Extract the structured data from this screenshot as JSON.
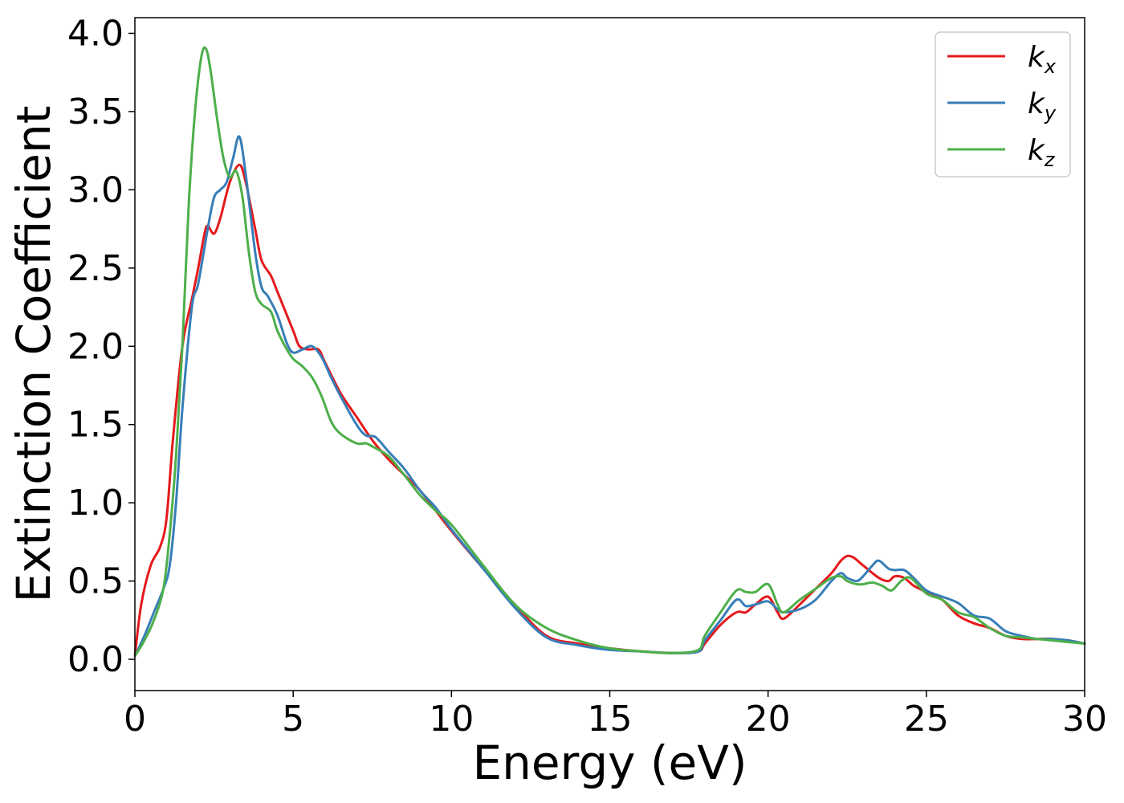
{
  "chart_data": {
    "type": "line",
    "xlabel": "Energy (eV)",
    "ylabel": "Extinction Coefficient",
    "xlim": [
      0,
      30
    ],
    "ylim": [
      -0.2,
      4.1
    ],
    "xticks": [
      0,
      5,
      10,
      15,
      20,
      25,
      30
    ],
    "xtick_labels": [
      "0",
      "5",
      "10",
      "15",
      "20",
      "25",
      "30"
    ],
    "yticks": [
      0.0,
      0.5,
      1.0,
      1.5,
      2.0,
      2.5,
      3.0,
      3.5,
      4.0
    ],
    "ytick_labels": [
      "0.0",
      "0.5",
      "1.0",
      "1.5",
      "2.0",
      "2.5",
      "3.0",
      "3.5",
      "4.0"
    ],
    "grid": false,
    "legend_position": "top-right",
    "series": [
      {
        "name": "k",
        "subscript": "x",
        "color": "#e41a1c",
        "x": [
          0,
          0.2,
          0.5,
          0.8,
          1.0,
          1.2,
          1.5,
          1.8,
          2.0,
          2.2,
          2.3,
          2.5,
          2.7,
          3.0,
          3.3,
          3.5,
          3.8,
          4.0,
          4.3,
          4.5,
          5.0,
          5.2,
          5.5,
          5.8,
          6.0,
          6.5,
          7.0,
          7.5,
          8.0,
          8.5,
          9.0,
          9.5,
          10.0,
          11.0,
          12.0,
          13.0,
          14.0,
          15.0,
          16.0,
          17.0,
          17.8,
          18.0,
          18.5,
          19.0,
          19.3,
          19.6,
          20.0,
          20.3,
          20.5,
          21.0,
          21.5,
          22.0,
          22.3,
          22.5,
          22.7,
          23.0,
          23.5,
          23.8,
          24.0,
          24.3,
          24.6,
          25.0,
          25.5,
          26.0,
          26.5,
          27.0,
          27.5,
          28.0,
          28.5,
          29.0,
          29.5,
          30.0
        ],
        "y": [
          0.02,
          0.35,
          0.6,
          0.72,
          0.9,
          1.4,
          2.0,
          2.3,
          2.5,
          2.72,
          2.77,
          2.72,
          2.82,
          3.05,
          3.16,
          3.05,
          2.75,
          2.55,
          2.45,
          2.35,
          2.1,
          2.0,
          1.98,
          1.98,
          1.9,
          1.7,
          1.55,
          1.4,
          1.28,
          1.18,
          1.08,
          0.95,
          0.82,
          0.58,
          0.35,
          0.15,
          0.1,
          0.07,
          0.05,
          0.04,
          0.05,
          0.1,
          0.22,
          0.3,
          0.3,
          0.35,
          0.4,
          0.3,
          0.26,
          0.35,
          0.45,
          0.55,
          0.63,
          0.66,
          0.65,
          0.6,
          0.52,
          0.5,
          0.53,
          0.52,
          0.47,
          0.43,
          0.38,
          0.28,
          0.23,
          0.2,
          0.15,
          0.13,
          0.13,
          0.13,
          0.12,
          0.1
        ]
      },
      {
        "name": "k",
        "subscript": "y",
        "color": "#377eb8",
        "x": [
          0,
          0.3,
          0.6,
          0.9,
          1.1,
          1.3,
          1.5,
          1.8,
          2.0,
          2.3,
          2.5,
          2.7,
          2.9,
          3.1,
          3.3,
          3.5,
          3.8,
          4.0,
          4.2,
          4.5,
          4.8,
          5.0,
          5.3,
          5.6,
          5.9,
          6.2,
          6.5,
          7.0,
          7.3,
          7.6,
          8.0,
          8.5,
          9.0,
          9.5,
          10.0,
          11.0,
          12.0,
          13.0,
          14.0,
          15.0,
          16.0,
          17.0,
          17.8,
          18.0,
          18.5,
          19.0,
          19.3,
          19.6,
          20.0,
          20.3,
          20.5,
          21.0,
          21.5,
          22.0,
          22.3,
          22.5,
          22.8,
          23.0,
          23.3,
          23.5,
          23.8,
          24.0,
          24.3,
          24.6,
          25.0,
          25.5,
          26.0,
          26.5,
          27.0,
          27.5,
          28.0,
          28.5,
          29.0,
          29.5,
          30.0
        ],
        "y": [
          0.02,
          0.15,
          0.3,
          0.45,
          0.6,
          1.0,
          1.6,
          2.25,
          2.4,
          2.75,
          2.95,
          3.0,
          3.05,
          3.2,
          3.34,
          3.1,
          2.6,
          2.38,
          2.32,
          2.2,
          2.02,
          1.96,
          1.98,
          2.0,
          1.93,
          1.8,
          1.68,
          1.5,
          1.43,
          1.42,
          1.33,
          1.22,
          1.08,
          0.97,
          0.83,
          0.58,
          0.33,
          0.14,
          0.09,
          0.06,
          0.05,
          0.04,
          0.05,
          0.12,
          0.25,
          0.38,
          0.34,
          0.35,
          0.37,
          0.32,
          0.3,
          0.32,
          0.38,
          0.5,
          0.55,
          0.52,
          0.5,
          0.53,
          0.6,
          0.63,
          0.58,
          0.57,
          0.57,
          0.52,
          0.44,
          0.4,
          0.36,
          0.28,
          0.26,
          0.18,
          0.15,
          0.13,
          0.13,
          0.12,
          0.1
        ]
      },
      {
        "name": "k",
        "subscript": "z",
        "color": "#4daf4a",
        "x": [
          0,
          0.3,
          0.6,
          0.9,
          1.1,
          1.3,
          1.5,
          1.7,
          1.9,
          2.1,
          2.25,
          2.4,
          2.6,
          2.8,
          3.0,
          3.2,
          3.4,
          3.6,
          3.8,
          4.0,
          4.3,
          4.5,
          4.8,
          5.0,
          5.3,
          5.6,
          5.9,
          6.2,
          6.5,
          7.0,
          7.3,
          7.5,
          8.0,
          8.5,
          9.0,
          9.5,
          10.0,
          11.0,
          12.0,
          13.0,
          14.0,
          15.0,
          16.0,
          17.0,
          17.8,
          18.0,
          18.5,
          19.0,
          19.3,
          19.6,
          20.0,
          20.3,
          20.5,
          21.0,
          21.5,
          22.0,
          22.3,
          22.5,
          22.8,
          23.0,
          23.3,
          23.6,
          23.9,
          24.2,
          24.5,
          25.0,
          25.5,
          26.0,
          26.5,
          27.0,
          27.5,
          28.0,
          28.5,
          29.0,
          29.5,
          30.0
        ],
        "y": [
          0.02,
          0.12,
          0.25,
          0.45,
          0.8,
          1.3,
          2.0,
          2.9,
          3.5,
          3.85,
          3.9,
          3.75,
          3.45,
          3.2,
          3.08,
          3.12,
          2.95,
          2.6,
          2.35,
          2.27,
          2.22,
          2.1,
          1.98,
          1.92,
          1.87,
          1.8,
          1.68,
          1.52,
          1.44,
          1.38,
          1.38,
          1.36,
          1.3,
          1.18,
          1.05,
          0.95,
          0.86,
          0.6,
          0.35,
          0.2,
          0.12,
          0.07,
          0.05,
          0.04,
          0.06,
          0.15,
          0.3,
          0.44,
          0.43,
          0.43,
          0.48,
          0.35,
          0.3,
          0.38,
          0.45,
          0.52,
          0.53,
          0.5,
          0.48,
          0.48,
          0.49,
          0.47,
          0.44,
          0.5,
          0.52,
          0.42,
          0.38,
          0.3,
          0.27,
          0.2,
          0.15,
          0.14,
          0.13,
          0.12,
          0.11,
          0.1
        ]
      }
    ]
  }
}
